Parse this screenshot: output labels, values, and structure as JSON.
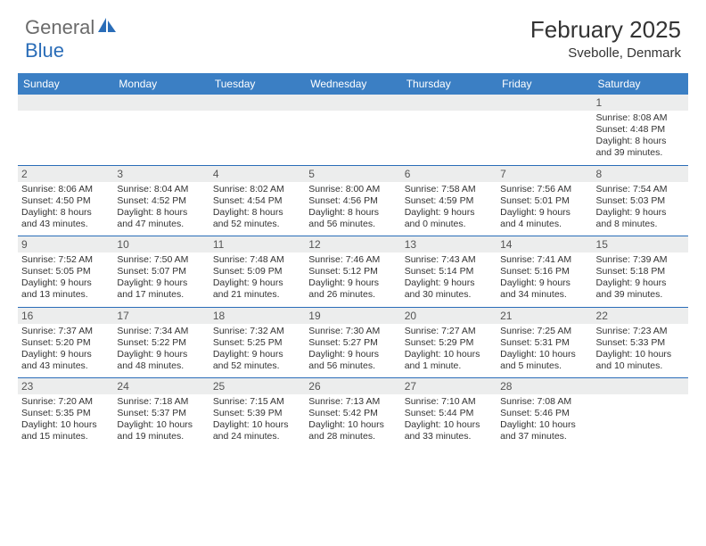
{
  "logo": {
    "general": "General",
    "blue": "Blue"
  },
  "title": "February 2025",
  "location": "Svebolle, Denmark",
  "colors": {
    "header_bar": "#3b7fc4",
    "rule": "#2a6db8",
    "daynum_bg": "#eceded",
    "text": "#333333",
    "logo_gray": "#6b6b6b",
    "logo_blue": "#2a6db8"
  },
  "fonts": {
    "title_size": 26,
    "location_size": 15,
    "dayhead_size": 12,
    "daynum_size": 12,
    "body_size": 10.5
  },
  "day_names": [
    "Sunday",
    "Monday",
    "Tuesday",
    "Wednesday",
    "Thursday",
    "Friday",
    "Saturday"
  ],
  "weeks": [
    [
      null,
      null,
      null,
      null,
      null,
      null,
      {
        "n": "1",
        "sr": "Sunrise: 8:08 AM",
        "ss": "Sunset: 4:48 PM",
        "d1": "Daylight: 8 hours",
        "d2": "and 39 minutes."
      }
    ],
    [
      {
        "n": "2",
        "sr": "Sunrise: 8:06 AM",
        "ss": "Sunset: 4:50 PM",
        "d1": "Daylight: 8 hours",
        "d2": "and 43 minutes."
      },
      {
        "n": "3",
        "sr": "Sunrise: 8:04 AM",
        "ss": "Sunset: 4:52 PM",
        "d1": "Daylight: 8 hours",
        "d2": "and 47 minutes."
      },
      {
        "n": "4",
        "sr": "Sunrise: 8:02 AM",
        "ss": "Sunset: 4:54 PM",
        "d1": "Daylight: 8 hours",
        "d2": "and 52 minutes."
      },
      {
        "n": "5",
        "sr": "Sunrise: 8:00 AM",
        "ss": "Sunset: 4:56 PM",
        "d1": "Daylight: 8 hours",
        "d2": "and 56 minutes."
      },
      {
        "n": "6",
        "sr": "Sunrise: 7:58 AM",
        "ss": "Sunset: 4:59 PM",
        "d1": "Daylight: 9 hours",
        "d2": "and 0 minutes."
      },
      {
        "n": "7",
        "sr": "Sunrise: 7:56 AM",
        "ss": "Sunset: 5:01 PM",
        "d1": "Daylight: 9 hours",
        "d2": "and 4 minutes."
      },
      {
        "n": "8",
        "sr": "Sunrise: 7:54 AM",
        "ss": "Sunset: 5:03 PM",
        "d1": "Daylight: 9 hours",
        "d2": "and 8 minutes."
      }
    ],
    [
      {
        "n": "9",
        "sr": "Sunrise: 7:52 AM",
        "ss": "Sunset: 5:05 PM",
        "d1": "Daylight: 9 hours",
        "d2": "and 13 minutes."
      },
      {
        "n": "10",
        "sr": "Sunrise: 7:50 AM",
        "ss": "Sunset: 5:07 PM",
        "d1": "Daylight: 9 hours",
        "d2": "and 17 minutes."
      },
      {
        "n": "11",
        "sr": "Sunrise: 7:48 AM",
        "ss": "Sunset: 5:09 PM",
        "d1": "Daylight: 9 hours",
        "d2": "and 21 minutes."
      },
      {
        "n": "12",
        "sr": "Sunrise: 7:46 AM",
        "ss": "Sunset: 5:12 PM",
        "d1": "Daylight: 9 hours",
        "d2": "and 26 minutes."
      },
      {
        "n": "13",
        "sr": "Sunrise: 7:43 AM",
        "ss": "Sunset: 5:14 PM",
        "d1": "Daylight: 9 hours",
        "d2": "and 30 minutes."
      },
      {
        "n": "14",
        "sr": "Sunrise: 7:41 AM",
        "ss": "Sunset: 5:16 PM",
        "d1": "Daylight: 9 hours",
        "d2": "and 34 minutes."
      },
      {
        "n": "15",
        "sr": "Sunrise: 7:39 AM",
        "ss": "Sunset: 5:18 PM",
        "d1": "Daylight: 9 hours",
        "d2": "and 39 minutes."
      }
    ],
    [
      {
        "n": "16",
        "sr": "Sunrise: 7:37 AM",
        "ss": "Sunset: 5:20 PM",
        "d1": "Daylight: 9 hours",
        "d2": "and 43 minutes."
      },
      {
        "n": "17",
        "sr": "Sunrise: 7:34 AM",
        "ss": "Sunset: 5:22 PM",
        "d1": "Daylight: 9 hours",
        "d2": "and 48 minutes."
      },
      {
        "n": "18",
        "sr": "Sunrise: 7:32 AM",
        "ss": "Sunset: 5:25 PM",
        "d1": "Daylight: 9 hours",
        "d2": "and 52 minutes."
      },
      {
        "n": "19",
        "sr": "Sunrise: 7:30 AM",
        "ss": "Sunset: 5:27 PM",
        "d1": "Daylight: 9 hours",
        "d2": "and 56 minutes."
      },
      {
        "n": "20",
        "sr": "Sunrise: 7:27 AM",
        "ss": "Sunset: 5:29 PM",
        "d1": "Daylight: 10 hours",
        "d2": "and 1 minute."
      },
      {
        "n": "21",
        "sr": "Sunrise: 7:25 AM",
        "ss": "Sunset: 5:31 PM",
        "d1": "Daylight: 10 hours",
        "d2": "and 5 minutes."
      },
      {
        "n": "22",
        "sr": "Sunrise: 7:23 AM",
        "ss": "Sunset: 5:33 PM",
        "d1": "Daylight: 10 hours",
        "d2": "and 10 minutes."
      }
    ],
    [
      {
        "n": "23",
        "sr": "Sunrise: 7:20 AM",
        "ss": "Sunset: 5:35 PM",
        "d1": "Daylight: 10 hours",
        "d2": "and 15 minutes."
      },
      {
        "n": "24",
        "sr": "Sunrise: 7:18 AM",
        "ss": "Sunset: 5:37 PM",
        "d1": "Daylight: 10 hours",
        "d2": "and 19 minutes."
      },
      {
        "n": "25",
        "sr": "Sunrise: 7:15 AM",
        "ss": "Sunset: 5:39 PM",
        "d1": "Daylight: 10 hours",
        "d2": "and 24 minutes."
      },
      {
        "n": "26",
        "sr": "Sunrise: 7:13 AM",
        "ss": "Sunset: 5:42 PM",
        "d1": "Daylight: 10 hours",
        "d2": "and 28 minutes."
      },
      {
        "n": "27",
        "sr": "Sunrise: 7:10 AM",
        "ss": "Sunset: 5:44 PM",
        "d1": "Daylight: 10 hours",
        "d2": "and 33 minutes."
      },
      {
        "n": "28",
        "sr": "Sunrise: 7:08 AM",
        "ss": "Sunset: 5:46 PM",
        "d1": "Daylight: 10 hours",
        "d2": "and 37 minutes."
      },
      null
    ]
  ]
}
